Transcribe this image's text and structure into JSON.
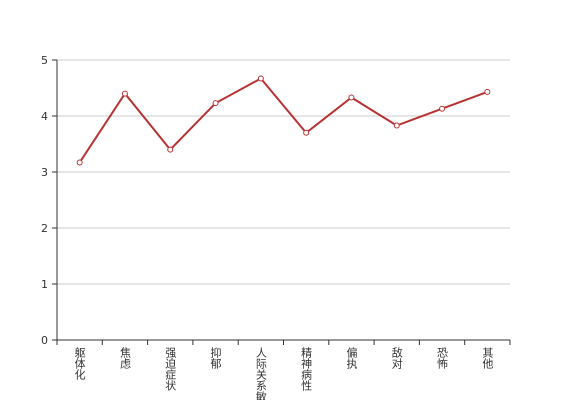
{
  "chart_data": {
    "type": "line",
    "categories": [
      "躯体化",
      "焦虑",
      "强迫症状",
      "抑郁",
      "人际关系敏感",
      "精神病性",
      "偏执",
      "敌对",
      "恐怖",
      "其他"
    ],
    "values": [
      3.17,
      4.4,
      3.4,
      4.23,
      4.67,
      3.7,
      4.33,
      3.83,
      4.13,
      4.43
    ],
    "color": "#b83232",
    "ylim": [
      0,
      5
    ],
    "yticks": [
      0,
      1,
      2,
      3,
      4,
      5
    ],
    "grid": true
  }
}
